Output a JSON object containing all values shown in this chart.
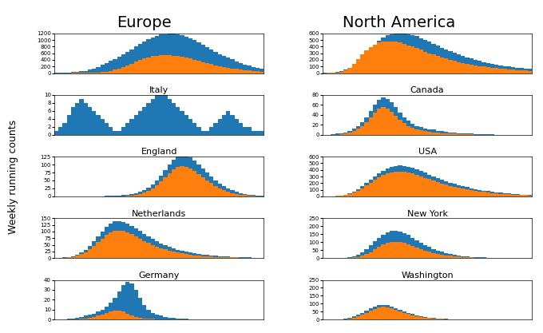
{
  "title_left": "Europe",
  "title_right": "North America",
  "ylabel": "Weekly running counts",
  "blue_color": "#1f77b4",
  "orange_color": "#ff7f0e",
  "n_weeks": 50,
  "europe_total": [
    5,
    8,
    12,
    18,
    25,
    35,
    50,
    70,
    100,
    140,
    190,
    250,
    310,
    370,
    430,
    490,
    560,
    640,
    720,
    800,
    880,
    960,
    1020,
    1080,
    1130,
    1160,
    1180,
    1190,
    1185,
    1170,
    1140,
    1100,
    1050,
    990,
    920,
    850,
    780,
    710,
    640,
    570,
    510,
    460,
    410,
    360,
    310,
    260,
    220,
    185,
    155,
    130
  ],
  "europe_orange": [
    0,
    0,
    0,
    0,
    1,
    2,
    3,
    5,
    8,
    12,
    18,
    28,
    45,
    70,
    100,
    140,
    180,
    230,
    285,
    340,
    390,
    440,
    480,
    510,
    530,
    540,
    545,
    540,
    530,
    515,
    495,
    470,
    440,
    405,
    370,
    335,
    300,
    268,
    238,
    210,
    185,
    163,
    143,
    125,
    108,
    93,
    80,
    68,
    57,
    48
  ],
  "na_total": [
    2,
    5,
    10,
    18,
    30,
    50,
    80,
    120,
    170,
    230,
    290,
    360,
    430,
    490,
    540,
    570,
    590,
    600,
    605,
    600,
    590,
    575,
    555,
    530,
    505,
    475,
    445,
    415,
    385,
    355,
    330,
    305,
    280,
    258,
    237,
    218,
    200,
    183,
    167,
    153,
    140,
    128,
    117,
    107,
    98,
    90,
    82,
    75,
    69,
    63
  ],
  "na_orange": [
    0,
    1,
    3,
    8,
    18,
    40,
    80,
    140,
    210,
    280,
    340,
    390,
    430,
    460,
    475,
    480,
    478,
    470,
    458,
    440,
    420,
    398,
    375,
    350,
    325,
    300,
    278,
    257,
    237,
    218,
    200,
    184,
    168,
    153,
    140,
    128,
    117,
    107,
    98,
    90,
    82,
    75,
    69,
    63,
    57,
    52,
    47,
    43,
    39,
    35
  ],
  "italy_total": [
    1,
    2,
    3,
    5,
    7,
    8,
    9,
    8,
    7,
    6,
    5,
    4,
    3,
    2,
    1,
    1,
    2,
    3,
    4,
    5,
    6,
    7,
    8,
    9,
    10,
    11,
    10,
    9,
    8,
    7,
    6,
    5,
    4,
    3,
    2,
    1,
    1,
    2,
    3,
    4,
    5,
    6,
    5,
    4,
    3,
    2,
    2,
    1,
    1,
    1
  ],
  "italy_orange": [
    0,
    0,
    0,
    0,
    0,
    0,
    0,
    0,
    0,
    0,
    0,
    0,
    0,
    0,
    0,
    0,
    0,
    0,
    0,
    0,
    0,
    0,
    0,
    0,
    0,
    0,
    0,
    0,
    0,
    0,
    0,
    0,
    0,
    0,
    0,
    0,
    0,
    0,
    0,
    0,
    0,
    0,
    0,
    0,
    0,
    0,
    0,
    0,
    0,
    0
  ],
  "canada_total": [
    0,
    0,
    1,
    2,
    3,
    5,
    8,
    12,
    18,
    25,
    35,
    48,
    60,
    70,
    75,
    72,
    65,
    55,
    45,
    35,
    28,
    22,
    18,
    15,
    13,
    11,
    10,
    8,
    7,
    6,
    5,
    4,
    3,
    3,
    2,
    2,
    1,
    1,
    1,
    1,
    1,
    0,
    0,
    0,
    0,
    0,
    0,
    0,
    0,
    0
  ],
  "canada_orange": [
    0,
    0,
    0,
    0,
    1,
    2,
    4,
    7,
    12,
    18,
    25,
    35,
    45,
    52,
    55,
    52,
    46,
    38,
    30,
    23,
    18,
    14,
    11,
    9,
    7,
    6,
    5,
    4,
    3,
    3,
    2,
    2,
    1,
    1,
    1,
    1,
    0,
    0,
    0,
    0,
    0,
    0,
    0,
    0,
    0,
    0,
    0,
    0,
    0,
    0
  ],
  "england_total": [
    0,
    0,
    0,
    0,
    0,
    0,
    0,
    0,
    1,
    1,
    1,
    1,
    2,
    2,
    2,
    3,
    4,
    5,
    7,
    10,
    14,
    20,
    28,
    38,
    50,
    65,
    82,
    100,
    115,
    125,
    130,
    128,
    122,
    113,
    100,
    88,
    75,
    62,
    50,
    40,
    32,
    25,
    19,
    15,
    11,
    8,
    6,
    4,
    3,
    2
  ],
  "england_orange": [
    0,
    0,
    0,
    0,
    0,
    0,
    0,
    0,
    0,
    0,
    0,
    0,
    0,
    0,
    0,
    0,
    1,
    2,
    3,
    5,
    8,
    12,
    18,
    25,
    35,
    47,
    60,
    73,
    85,
    92,
    95,
    93,
    88,
    80,
    70,
    60,
    51,
    42,
    33,
    26,
    20,
    15,
    11,
    8,
    6,
    4,
    3,
    2,
    1,
    1
  ],
  "usa_total": [
    1,
    2,
    4,
    8,
    15,
    28,
    48,
    75,
    110,
    155,
    200,
    250,
    300,
    350,
    390,
    420,
    445,
    460,
    465,
    462,
    450,
    432,
    410,
    385,
    358,
    330,
    302,
    277,
    253,
    230,
    208,
    188,
    170,
    153,
    138,
    124,
    111,
    99,
    89,
    79,
    70,
    62,
    55,
    49,
    43,
    38,
    33,
    29,
    26,
    23
  ],
  "usa_orange": [
    0,
    1,
    2,
    5,
    10,
    20,
    35,
    58,
    88,
    125,
    165,
    208,
    250,
    290,
    320,
    345,
    362,
    372,
    375,
    370,
    360,
    344,
    325,
    304,
    282,
    260,
    238,
    217,
    197,
    178,
    161,
    145,
    130,
    117,
    105,
    94,
    84,
    75,
    67,
    59,
    52,
    46,
    41,
    36,
    31,
    27,
    24,
    21,
    18,
    16
  ],
  "netherlands_total": [
    0,
    1,
    2,
    4,
    7,
    12,
    20,
    30,
    45,
    63,
    82,
    100,
    118,
    130,
    138,
    140,
    137,
    130,
    122,
    113,
    103,
    92,
    82,
    72,
    63,
    55,
    48,
    42,
    36,
    31,
    27,
    23,
    20,
    17,
    15,
    13,
    11,
    9,
    8,
    7,
    6,
    5,
    4,
    3,
    3,
    2,
    2,
    1,
    1,
    1
  ],
  "netherlands_orange": [
    0,
    0,
    1,
    2,
    4,
    8,
    14,
    22,
    33,
    46,
    60,
    74,
    88,
    97,
    103,
    104,
    102,
    96,
    90,
    82,
    74,
    65,
    57,
    50,
    43,
    37,
    32,
    28,
    24,
    20,
    17,
    15,
    12,
    10,
    9,
    7,
    6,
    5,
    4,
    4,
    3,
    3,
    2,
    2,
    1,
    1,
    1,
    1,
    0,
    0
  ],
  "newyork_total": [
    0,
    0,
    0,
    0,
    1,
    3,
    6,
    12,
    22,
    38,
    58,
    80,
    105,
    128,
    148,
    162,
    170,
    172,
    168,
    158,
    144,
    128,
    112,
    97,
    83,
    70,
    58,
    48,
    39,
    32,
    26,
    21,
    17,
    13,
    10,
    8,
    6,
    5,
    4,
    3,
    2,
    2,
    1,
    1,
    1,
    0,
    0,
    0,
    0,
    0
  ],
  "newyork_orange": [
    0,
    0,
    0,
    0,
    0,
    1,
    2,
    4,
    8,
    15,
    25,
    38,
    54,
    70,
    84,
    94,
    100,
    102,
    100,
    95,
    87,
    77,
    67,
    57,
    48,
    40,
    33,
    27,
    22,
    17,
    14,
    11,
    9,
    7,
    5,
    4,
    3,
    2,
    2,
    1,
    1,
    1,
    0,
    0,
    0,
    0,
    0,
    0,
    0,
    0
  ],
  "germany_total": [
    0,
    0,
    0,
    1,
    1,
    2,
    3,
    4,
    5,
    6,
    8,
    10,
    13,
    17,
    22,
    28,
    35,
    38,
    36,
    30,
    22,
    15,
    10,
    7,
    5,
    4,
    3,
    2,
    2,
    1,
    1,
    1,
    0,
    0,
    0,
    0,
    0,
    0,
    0,
    0,
    0,
    0,
    0,
    0,
    0,
    0,
    0,
    0,
    0,
    0
  ],
  "germany_orange": [
    0,
    0,
    0,
    0,
    0,
    0,
    1,
    1,
    2,
    3,
    4,
    5,
    7,
    8,
    9,
    9,
    8,
    6,
    4,
    3,
    2,
    1,
    1,
    1,
    0,
    0,
    0,
    0,
    0,
    0,
    0,
    0,
    0,
    0,
    0,
    0,
    0,
    0,
    0,
    0,
    0,
    0,
    0,
    0,
    0,
    0,
    0,
    0,
    0,
    0
  ],
  "washington_total": [
    0,
    0,
    1,
    2,
    4,
    7,
    12,
    20,
    30,
    42,
    56,
    70,
    82,
    90,
    93,
    90,
    83,
    73,
    62,
    52,
    43,
    35,
    28,
    22,
    17,
    14,
    11,
    8,
    7,
    5,
    4,
    3,
    2,
    2,
    1,
    1,
    1,
    0,
    0,
    0,
    0,
    0,
    0,
    0,
    0,
    0,
    0,
    0,
    0,
    0
  ],
  "washington_orange": [
    0,
    0,
    0,
    1,
    2,
    4,
    7,
    12,
    20,
    30,
    42,
    56,
    68,
    76,
    80,
    78,
    72,
    63,
    53,
    44,
    36,
    29,
    23,
    18,
    14,
    11,
    8,
    6,
    5,
    4,
    3,
    2,
    2,
    1,
    1,
    1,
    0,
    0,
    0,
    0,
    0,
    0,
    0,
    0,
    0,
    0,
    0,
    0,
    0,
    0
  ],
  "europe_yticks": [
    0,
    200,
    400,
    600,
    800,
    1000,
    1200
  ],
  "na_yticks": [
    0,
    100,
    200,
    300,
    400,
    500,
    600
  ],
  "italy_yticks": [
    0,
    2,
    4,
    6,
    8,
    10
  ],
  "canada_yticks": [
    0,
    20,
    40,
    60,
    80
  ],
  "england_yticks": [
    0,
    25,
    50,
    75,
    100,
    125
  ],
  "usa_yticks": [
    0,
    100,
    200,
    300,
    400,
    500,
    600
  ],
  "netherlands_yticks": [
    0,
    25,
    50,
    75,
    100,
    125,
    150
  ],
  "newyork_yticks": [
    0,
    50,
    100,
    150,
    200,
    250
  ],
  "germany_yticks": [
    0,
    10,
    20,
    30,
    40
  ],
  "washington_yticks": [
    0,
    50,
    100,
    150,
    200,
    250
  ]
}
